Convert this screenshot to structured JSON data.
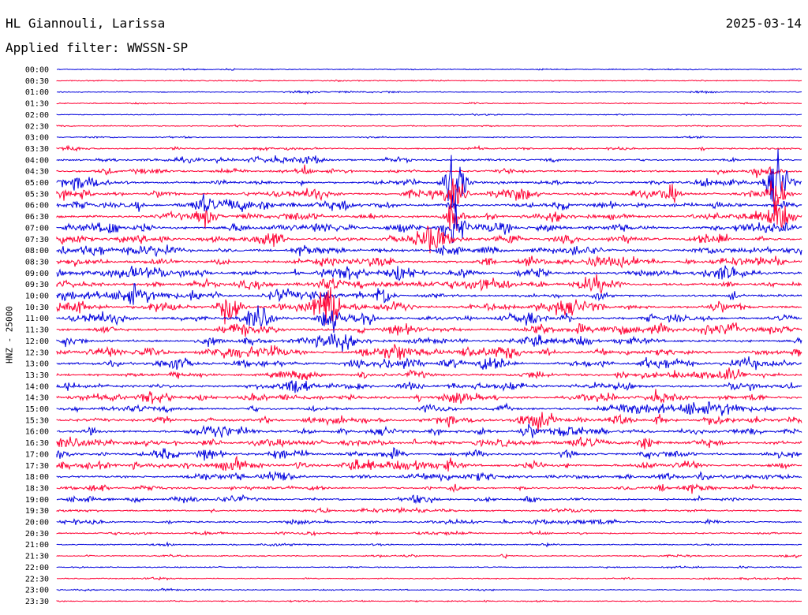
{
  "header": {
    "station": "HL Giannouli, Larissa",
    "date": "2025-03-14",
    "filter": "Applied filter: WWSSN-SP"
  },
  "side_label": "HNZ - 25000",
  "colors": {
    "odd": "#0000dd",
    "even": "#ff0033",
    "text": "#000000"
  },
  "chart_data": {
    "type": "line",
    "title": "",
    "ylabel": "HNZ - 25000",
    "row_labels": [
      "00:00",
      "00:30",
      "01:00",
      "01:30",
      "02:00",
      "02:30",
      "03:00",
      "03:30",
      "04:00",
      "04:30",
      "05:00",
      "05:30",
      "06:00",
      "06:30",
      "07:00",
      "07:30",
      "08:00",
      "08:30",
      "09:00",
      "09:30",
      "10:00",
      "10:30",
      "11:00",
      "11:30",
      "12:00",
      "12:30",
      "13:00",
      "13:30",
      "14:00",
      "14:30",
      "15:00",
      "15:30",
      "16:00",
      "16:30",
      "17:00",
      "17:30",
      "18:00",
      "18:30",
      "19:00",
      "19:30",
      "20:00",
      "20:30",
      "21:00",
      "21:30",
      "22:00",
      "22:30",
      "23:00",
      "23:30"
    ],
    "activity_level": [
      0.15,
      0.15,
      0.15,
      0.15,
      0.15,
      0.2,
      0.15,
      0.4,
      0.6,
      0.7,
      0.8,
      0.9,
      1.0,
      1.0,
      1.0,
      1.0,
      1.0,
      1.0,
      1.0,
      1.0,
      1.0,
      1.0,
      1.0,
      1.0,
      1.0,
      1.0,
      1.0,
      0.9,
      0.9,
      0.9,
      0.9,
      0.9,
      0.9,
      0.9,
      0.9,
      0.9,
      0.8,
      0.7,
      0.6,
      0.5,
      0.5,
      0.4,
      0.3,
      0.25,
      0.2,
      0.2,
      0.2,
      0.2
    ],
    "events": [
      {
        "row": 10,
        "minute": 16,
        "amplitude": 68
      },
      {
        "row": 11,
        "minute": 16,
        "amplitude": 30
      },
      {
        "row": 13,
        "minute": 16,
        "amplitude": 20
      },
      {
        "row": 14,
        "minute": 16,
        "amplitude": 24
      },
      {
        "row": 10,
        "minute": 29,
        "amplitude": 48
      },
      {
        "row": 11,
        "minute": 29,
        "amplitude": 30
      },
      {
        "row": 21,
        "minute": 7,
        "amplitude": 40
      },
      {
        "row": 21,
        "minute": 11,
        "amplitude": 48
      },
      {
        "row": 22,
        "minute": 11,
        "amplitude": 25
      },
      {
        "row": 15,
        "minute": 15,
        "amplitude": 24
      },
      {
        "row": 13,
        "minute": 29,
        "amplitude": 26
      }
    ]
  }
}
